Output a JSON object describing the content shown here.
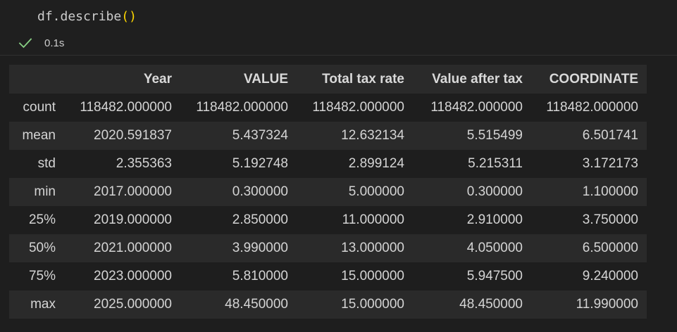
{
  "cell": {
    "code_name": "df.describe",
    "code_open_paren": "(",
    "code_close_paren": ")",
    "status_icon": "check-icon",
    "exec_time": "0.1s",
    "status_color": "#89d185"
  },
  "table": {
    "columns": [
      "",
      "Year",
      "VALUE",
      "Total tax rate",
      "Value after tax",
      "COORDINATE"
    ],
    "rows": [
      {
        "index": "count",
        "values": [
          "118482.000000",
          "118482.000000",
          "118482.000000",
          "118482.000000",
          "118482.000000"
        ]
      },
      {
        "index": "mean",
        "values": [
          "2020.591837",
          "5.437324",
          "12.632134",
          "5.515499",
          "6.501741"
        ]
      },
      {
        "index": "std",
        "values": [
          "2.355363",
          "5.192748",
          "2.899124",
          "5.215311",
          "3.172173"
        ]
      },
      {
        "index": "min",
        "values": [
          "2017.000000",
          "0.300000",
          "5.000000",
          "0.300000",
          "1.100000"
        ]
      },
      {
        "index": "25%",
        "values": [
          "2019.000000",
          "2.850000",
          "11.000000",
          "2.910000",
          "3.750000"
        ]
      },
      {
        "index": "50%",
        "values": [
          "2021.000000",
          "3.990000",
          "13.000000",
          "4.050000",
          "6.500000"
        ]
      },
      {
        "index": "75%",
        "values": [
          "2023.000000",
          "5.810000",
          "15.000000",
          "5.947500",
          "9.240000"
        ]
      },
      {
        "index": "max",
        "values": [
          "2025.000000",
          "48.450000",
          "15.000000",
          "48.450000",
          "11.990000"
        ]
      }
    ]
  }
}
